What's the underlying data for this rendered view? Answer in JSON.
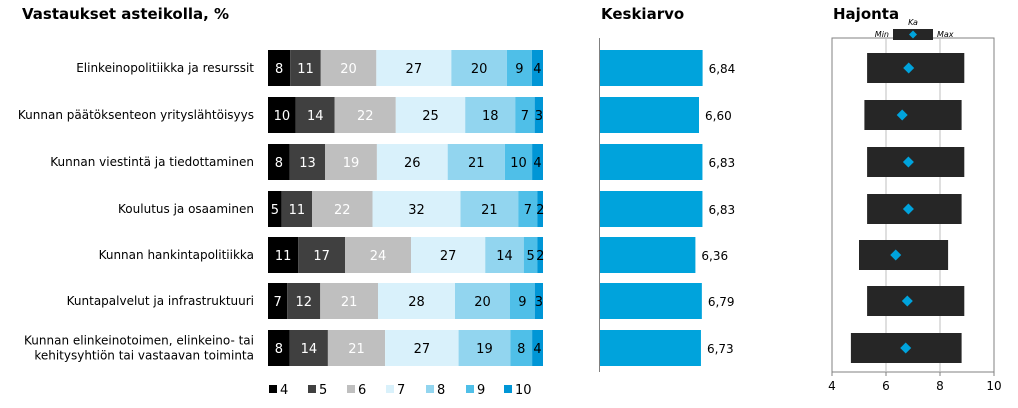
{
  "chart_data": [
    {
      "type": "bar",
      "stacked": true,
      "orientation": "horizontal",
      "title": "Vastaukset asteikolla, %",
      "categories": [
        "Elinkeinopolitiikka ja resurssit",
        "Kunnan päätöksenteon yrityslähtöisyys",
        "Kunnan viestintä ja tiedottaminen",
        "Koulutus ja osaaminen",
        "Kunnan hankintapolitiikka",
        "Kuntapalvelut ja infrastruktuuri",
        "Kunnan elinkeinotoimen, elinkeino- tai kehitysyhtiön tai vastaavan toiminta"
      ],
      "category_lines": [
        [
          "Elinkeinopolitiikka ja resurssit"
        ],
        [
          "Kunnan päätöksenteon yrityslähtöisyys"
        ],
        [
          "Kunnan viestintä ja tiedottaminen"
        ],
        [
          "Koulutus ja osaaminen"
        ],
        [
          "Kunnan hankintapolitiikka"
        ],
        [
          "Kuntapalvelut ja infrastruktuuri"
        ],
        [
          "Kunnan elinkeinotoimen, elinkeino- tai",
          "kehitysyhtiön tai vastaavan toiminta"
        ]
      ],
      "series": [
        {
          "name": "4",
          "color": "#000000",
          "label_color": "#ffffff",
          "values": [
            8,
            10,
            8,
            5,
            11,
            7,
            8
          ]
        },
        {
          "name": "5",
          "color": "#404040",
          "label_color": "#ffffff",
          "values": [
            11,
            14,
            13,
            11,
            17,
            12,
            14
          ]
        },
        {
          "name": "6",
          "color": "#bfbfbf",
          "label_color": "#ffffff",
          "values": [
            20,
            22,
            19,
            22,
            24,
            21,
            21
          ]
        },
        {
          "name": "7",
          "color": "#d9f1fb",
          "label_color": "#000000",
          "values": [
            27,
            25,
            26,
            32,
            27,
            28,
            27
          ]
        },
        {
          "name": "8",
          "color": "#92d5ef",
          "label_color": "#000000",
          "values": [
            20,
            18,
            21,
            21,
            14,
            20,
            19
          ]
        },
        {
          "name": "9",
          "color": "#4fbfe8",
          "label_color": "#000000",
          "values": [
            9,
            7,
            10,
            7,
            5,
            9,
            8
          ]
        },
        {
          "name": "10",
          "color": "#0096d6",
          "label_color": "#000000",
          "values": [
            4,
            3,
            4,
            2,
            2,
            3,
            4
          ]
        }
      ],
      "xlim": [
        0,
        100
      ],
      "legend": "bottom"
    },
    {
      "type": "bar",
      "orientation": "horizontal",
      "title": "Keskiarvo",
      "values": [
        6.84,
        6.6,
        6.83,
        6.83,
        6.36,
        6.79,
        6.73
      ],
      "value_labels": [
        "6,84",
        "6,60",
        "6,83",
        "6,83",
        "6,36",
        "6,79",
        "6,73"
      ],
      "color": "#00a3dc"
    },
    {
      "type": "range",
      "title": "Hajonta",
      "key": {
        "min_label": "Min",
        "mean_label": "Ka",
        "max_label": "Max"
      },
      "xlim": [
        4,
        10
      ],
      "xticks": [
        "4",
        "6",
        "8",
        "10"
      ],
      "min": [
        5.3,
        5.2,
        5.3,
        5.3,
        5.0,
        5.3,
        4.7
      ],
      "mean": [
        6.84,
        6.6,
        6.83,
        6.83,
        6.36,
        6.79,
        6.73
      ],
      "max": [
        8.9,
        8.8,
        8.9,
        8.8,
        8.3,
        8.9,
        8.8
      ],
      "range_color": "#262626",
      "mean_color": "#00a3dc"
    }
  ]
}
